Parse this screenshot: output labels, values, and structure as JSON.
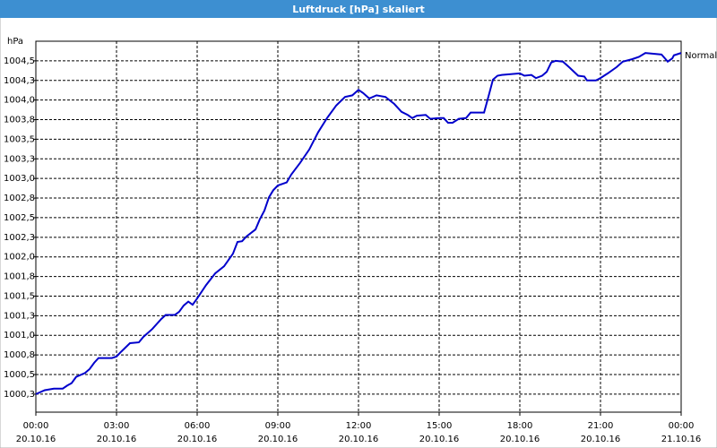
{
  "chart_data": {
    "type": "line",
    "title": "Luftdruck [hPa] skaliert",
    "y_label": "hPa",
    "x": [
      0,
      0.33,
      0.67,
      1,
      1.17,
      1.33,
      1.5,
      1.83,
      2,
      2.17,
      2.33,
      2.83,
      3,
      3.17,
      3.5,
      3.83,
      4,
      4.33,
      4.67,
      4.83,
      5.17,
      5.33,
      5.5,
      5.67,
      5.83,
      6,
      6.33,
      6.67,
      7,
      7.33,
      7.5,
      7.67,
      7.83,
      8.17,
      8.33,
      8.5,
      8.67,
      8.83,
      9,
      9.33,
      9.5,
      9.83,
      10.17,
      10.5,
      10.83,
      11.17,
      11.5,
      11.77,
      12,
      12.17,
      12.4,
      12.67,
      13,
      13.33,
      13.6,
      13.83,
      14,
      14.17,
      14.5,
      14.67,
      15,
      15.17,
      15.33,
      15.5,
      15.73,
      16,
      16.17,
      16.67,
      16.83,
      17,
      17.17,
      17.33,
      18,
      18.17,
      18.43,
      18.6,
      18.83,
      19,
      19.17,
      19.33,
      19.6,
      19.83,
      20.17,
      20.4,
      20.5,
      20.83,
      21,
      21.27,
      21.6,
      21.83,
      22.17,
      22.43,
      22.67,
      23.27,
      23.4,
      23.5,
      23.67,
      23.73,
      24
    ],
    "series": [
      {
        "name": "Normal",
        "color": "#0000cc",
        "values": [
          1000.25,
          1000.3,
          1000.32,
          1000.32,
          1000.36,
          1000.39,
          1000.47,
          1000.52,
          1000.57,
          1000.65,
          1000.71,
          1000.71,
          1000.73,
          1000.79,
          1000.9,
          1000.91,
          1000.98,
          1001.08,
          1001.21,
          1001.26,
          1001.26,
          1001.3,
          1001.38,
          1001.43,
          1001.39,
          1001.47,
          1001.64,
          1001.79,
          1001.88,
          1002.04,
          1002.19,
          1002.2,
          1002.26,
          1002.35,
          1002.48,
          1002.59,
          1002.76,
          1002.85,
          1002.91,
          1002.95,
          1003.05,
          1003.2,
          1003.37,
          1003.59,
          1003.77,
          1003.93,
          1004.04,
          1004.06,
          1004.13,
          1004.09,
          1004.02,
          1004.06,
          1004.04,
          1003.95,
          1003.85,
          1003.81,
          1003.77,
          1003.8,
          1003.81,
          1003.76,
          1003.77,
          1003.77,
          1003.71,
          1003.71,
          1003.76,
          1003.77,
          1003.84,
          1003.84,
          1004.04,
          1004.26,
          1004.31,
          1004.32,
          1004.34,
          1004.31,
          1004.32,
          1004.28,
          1004.31,
          1004.36,
          1004.48,
          1004.5,
          1004.49,
          1004.42,
          1004.31,
          1004.3,
          1004.25,
          1004.25,
          1004.28,
          1004.34,
          1004.42,
          1004.49,
          1004.52,
          1004.55,
          1004.6,
          1004.58,
          1004.53,
          1004.49,
          1004.53,
          1004.57,
          1004.6
        ]
      }
    ],
    "xlim": [
      0,
      24
    ],
    "xticks": [
      {
        "value": 0,
        "label": "00:00",
        "date": "20.10.16"
      },
      {
        "value": 3,
        "label": "03:00",
        "date": "20.10.16"
      },
      {
        "value": 6,
        "label": "06:00",
        "date": "20.10.16"
      },
      {
        "value": 9,
        "label": "09:00",
        "date": "20.10.16"
      },
      {
        "value": 12,
        "label": "12:00",
        "date": "20.10.16"
      },
      {
        "value": 15,
        "label": "15:00",
        "date": "20.10.16"
      },
      {
        "value": 18,
        "label": "18:00",
        "date": "20.10.16"
      },
      {
        "value": 21,
        "label": "21:00",
        "date": "20.10.16"
      },
      {
        "value": 24,
        "label": "00:00",
        "date": "21.10.16"
      }
    ],
    "ylim": [
      1000.02,
      1004.75
    ],
    "yticks": [
      {
        "value": 1000.25,
        "label": "1000,3"
      },
      {
        "value": 1000.5,
        "label": "1000,5"
      },
      {
        "value": 1000.75,
        "label": "1000,8"
      },
      {
        "value": 1001,
        "label": "1001,0"
      },
      {
        "value": 1001.25,
        "label": "1001,3"
      },
      {
        "value": 1001.5,
        "label": "1001,5"
      },
      {
        "value": 1001.75,
        "label": "1001,8"
      },
      {
        "value": 1002,
        "label": "1002,0"
      },
      {
        "value": 1002.25,
        "label": "1002,3"
      },
      {
        "value": 1002.5,
        "label": "1002,5"
      },
      {
        "value": 1002.75,
        "label": "1002,8"
      },
      {
        "value": 1003,
        "label": "1003,0"
      },
      {
        "value": 1003.25,
        "label": "1003,3"
      },
      {
        "value": 1003.5,
        "label": "1003,5"
      },
      {
        "value": 1003.75,
        "label": "1003,8"
      },
      {
        "value": 1004,
        "label": "1004,0"
      },
      {
        "value": 1004.25,
        "label": "1004,3"
      },
      {
        "value": 1004.5,
        "label": "1004,5"
      }
    ],
    "grid": true
  }
}
